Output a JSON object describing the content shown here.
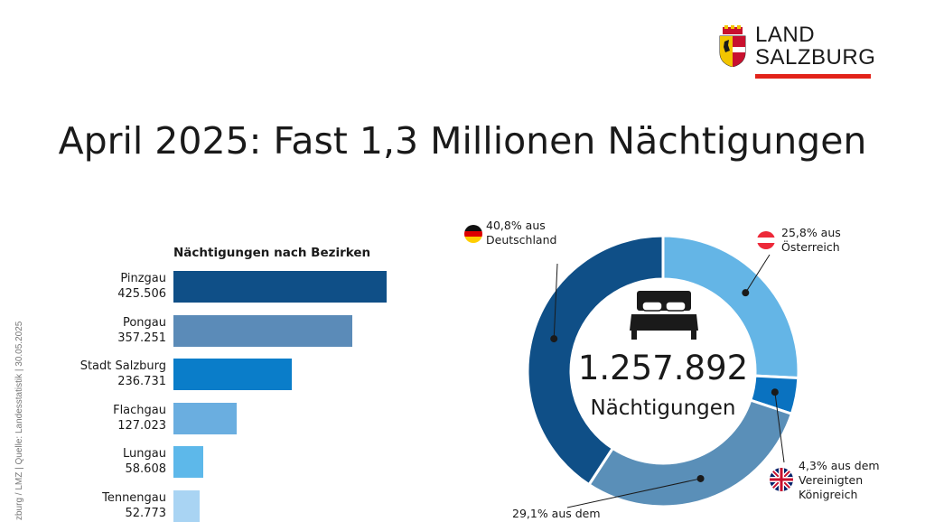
{
  "brand": {
    "line1": "LAND",
    "line2": "SALZBURG",
    "accent_color": "#e2231a"
  },
  "title": "April 2025: Fast 1,3 Millionen Nächtigungen",
  "source_note": "zburg / LMZ  |  Quelle: Landesstatistik  |  30.05.2025",
  "chart_data": [
    {
      "type": "bar",
      "orientation": "horizontal",
      "title": "Nächtigungen nach Bezirken",
      "categories": [
        "Pinzgau",
        "Pongau",
        "Stadt Salzburg",
        "Flachgau",
        "Lungau",
        "Tennengau"
      ],
      "values": [
        425506,
        357251,
        236731,
        127023,
        58608,
        52773
      ],
      "value_labels": [
        "425.506",
        "357.251",
        "236.731",
        "127.023",
        "58.608",
        "52.773"
      ],
      "colors": [
        "#0f4f87",
        "#5b8bb8",
        "#0a7dc9",
        "#6aaee0",
        "#5db8ea",
        "#a9d4f3"
      ]
    },
    {
      "type": "pie",
      "variant": "donut",
      "total_value": "1.257.892",
      "total_label": "Nächtigungen",
      "slices": [
        {
          "key": "at",
          "value": 25.8,
          "label_lines": [
            "25,8% aus",
            "Österreich"
          ],
          "color": "#64b5e6",
          "flag": "austria-flag-icon"
        },
        {
          "key": "uk",
          "value": 4.3,
          "label_lines": [
            "4,3% aus dem",
            "Vereinigten",
            "Königreich"
          ],
          "color": "#0a72c0",
          "flag": "uk-flag-icon"
        },
        {
          "key": "nl",
          "value": 29.1,
          "label_lines": [
            "29,1% aus dem"
          ],
          "color": "#5a8fb8",
          "flag": null
        },
        {
          "key": "de",
          "value": 40.8,
          "label_lines": [
            "40,8% aus",
            "Deutschland"
          ],
          "color": "#0f4f87",
          "flag": "germany-flag-icon"
        }
      ]
    }
  ]
}
